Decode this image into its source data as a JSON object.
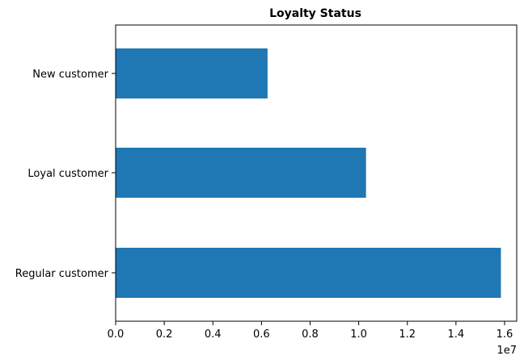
{
  "chart_data": {
    "type": "bar",
    "orientation": "horizontal",
    "title": "Loyalty Status",
    "xlabel": "",
    "ylabel": "",
    "categories": [
      "New customer",
      "Loyal customer",
      "Regular customer"
    ],
    "values": [
      6250000,
      10300000,
      15850000
    ],
    "xlim": [
      0,
      16500000
    ],
    "xticks": [
      0,
      2000000,
      4000000,
      6000000,
      8000000,
      10000000,
      12000000,
      14000000,
      16000000
    ],
    "xtick_labels": [
      "0.0",
      "0.2",
      "0.4",
      "0.6",
      "0.8",
      "1.0",
      "1.2",
      "1.4",
      "1.6"
    ],
    "x_offset_label": "1e7",
    "bar_color": "#1f77b4",
    "grid": false,
    "legend": "none"
  }
}
